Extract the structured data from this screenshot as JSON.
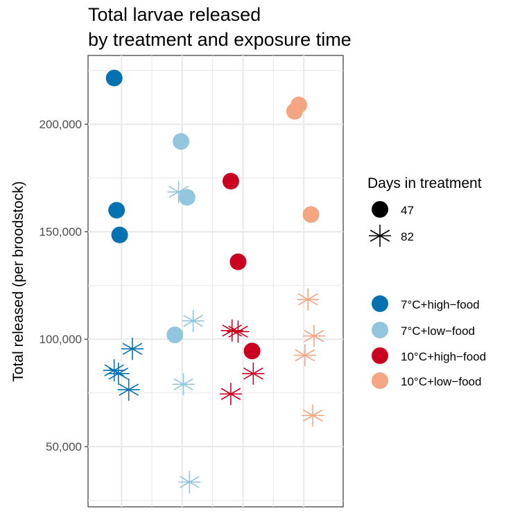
{
  "chart_data": {
    "type": "scatter",
    "title": [
      "Total larvae released",
      "by treatment and exposure time"
    ],
    "ylabel": "Total released (per broodstock)",
    "xlabel": "",
    "ylim": [
      22000,
      232000
    ],
    "yticks": [
      50000,
      100000,
      150000,
      200000
    ],
    "ytick_labels": [
      "50,000",
      "100,000",
      "150,000",
      "200,000"
    ],
    "grid": true,
    "legend_position": "right",
    "shape_legend": {
      "title": "Days in treatment",
      "items": [
        {
          "label": "47",
          "shape": "circle"
        },
        {
          "label": "82",
          "shape": "asterisk"
        }
      ]
    },
    "color_legend": {
      "items": [
        {
          "label": "7°C+high−food",
          "color": "#0571b0"
        },
        {
          "label": "7°C+low−food",
          "color": "#92c5de"
        },
        {
          "label": "10°C+high−food",
          "color": "#ca0020"
        },
        {
          "label": "10°C+low−food",
          "color": "#f4a582"
        }
      ]
    },
    "series": [
      {
        "treatment": "7°C+high−food",
        "color": "#0571b0",
        "x_center": 1,
        "points": [
          {
            "jitter": -0.12,
            "y": 221500,
            "days": "47"
          },
          {
            "jitter": -0.08,
            "y": 160000,
            "days": "47"
          },
          {
            "jitter": -0.03,
            "y": 148500,
            "days": "47"
          },
          {
            "jitter": 0.18,
            "y": 95500,
            "days": "82"
          },
          {
            "jitter": -0.12,
            "y": 85500,
            "days": "82"
          },
          {
            "jitter": -0.05,
            "y": 84000,
            "days": "82"
          },
          {
            "jitter": 0.12,
            "y": 76500,
            "days": "82"
          }
        ]
      },
      {
        "treatment": "7°C+low−food",
        "color": "#92c5de",
        "x_center": 2,
        "points": [
          {
            "jitter": -0.02,
            "y": 192000,
            "days": "47"
          },
          {
            "jitter": 0.08,
            "y": 166000,
            "days": "47"
          },
          {
            "jitter": -0.12,
            "y": 102000,
            "days": "47"
          },
          {
            "jitter": -0.06,
            "y": 168500,
            "days": "82"
          },
          {
            "jitter": 0.18,
            "y": 108500,
            "days": "82"
          },
          {
            "jitter": 0.02,
            "y": 79000,
            "days": "82"
          },
          {
            "jitter": 0.12,
            "y": 33500,
            "days": "82"
          }
        ]
      },
      {
        "treatment": "10°C+high−food",
        "color": "#ca0020",
        "x_center": 3,
        "points": [
          {
            "jitter": -0.2,
            "y": 173500,
            "days": "47"
          },
          {
            "jitter": -0.08,
            "y": 136000,
            "days": "47"
          },
          {
            "jitter": 0.15,
            "y": 94500,
            "days": "47"
          },
          {
            "jitter": -0.18,
            "y": 104000,
            "days": "82"
          },
          {
            "jitter": -0.08,
            "y": 103500,
            "days": "82"
          },
          {
            "jitter": 0.17,
            "y": 84000,
            "days": "82"
          },
          {
            "jitter": -0.2,
            "y": 74500,
            "days": "82"
          }
        ]
      },
      {
        "treatment": "10°C+low−food",
        "color": "#f4a582",
        "x_center": 4,
        "points": [
          {
            "jitter": -0.08,
            "y": 209000,
            "days": "47"
          },
          {
            "jitter": -0.15,
            "y": 206000,
            "days": "47"
          },
          {
            "jitter": 0.12,
            "y": 158000,
            "days": "47"
          },
          {
            "jitter": 0.07,
            "y": 118500,
            "days": "82"
          },
          {
            "jitter": 0.17,
            "y": 101500,
            "days": "82"
          },
          {
            "jitter": 0.02,
            "y": 92500,
            "days": "82"
          },
          {
            "jitter": 0.15,
            "y": 64500,
            "days": "82"
          }
        ]
      }
    ]
  }
}
